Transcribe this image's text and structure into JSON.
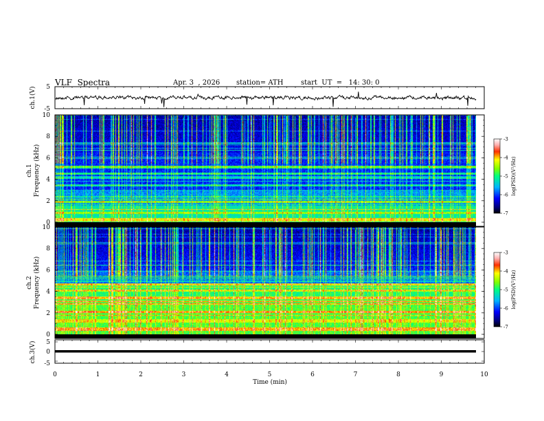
{
  "header": {
    "title": "VLF  Spectra",
    "date": "Apr. 3  , 2026",
    "station": "station= ATH",
    "start": "start  UT  =   14: 30: 0"
  },
  "chart_data": [
    {
      "type": "line",
      "panel": "ch.1 waveform",
      "ylabel": "ch.1(V)",
      "ylim": [
        -5,
        5
      ],
      "yticks": [
        "5",
        "-5"
      ],
      "xlim": [
        0,
        10
      ],
      "note": "noisy waveform centred near 0 V with sporadic negative spikes"
    },
    {
      "type": "heatmap",
      "panel": "ch.1 spectrogram",
      "ylabel": "ch.1\nFrequency  (kHz)",
      "ylim": [
        0,
        10
      ],
      "yticks": [
        "0",
        "2",
        "4",
        "6",
        "8",
        "10"
      ],
      "xlim": [
        0,
        10
      ],
      "colorbar": {
        "label": "log(PSD)(V²/Hz)",
        "range": [
          -7,
          -3
        ],
        "ticks": [
          "-3",
          "-4",
          "-5",
          "-6",
          "-7"
        ]
      }
    },
    {
      "type": "heatmap",
      "panel": "ch.2 spectrogram",
      "ylabel": "ch.2\nFrequency  (kHz)",
      "ylim": [
        0,
        10
      ],
      "yticks": [
        "0",
        "2",
        "4",
        "6",
        "8",
        "10"
      ],
      "xlim": [
        0,
        10
      ],
      "colorbar": {
        "label": "log(PSD)(V²/Hz)",
        "range": [
          -7,
          -3
        ],
        "ticks": [
          "-3",
          "-4",
          "-5",
          "-6",
          "-7"
        ]
      }
    },
    {
      "type": "line",
      "panel": "ch.3 waveform",
      "ylabel": "ch.3(V)",
      "ylim": [
        -5,
        5
      ],
      "yticks": [
        "5",
        "0",
        "-5"
      ],
      "xlim": [
        0,
        10
      ],
      "note": "flat dense trace near -1.5 V",
      "xlabel": "Time  (min)",
      "xticks": [
        "0",
        "1",
        "2",
        "3",
        "4",
        "5",
        "6",
        "7",
        "8",
        "9",
        "10"
      ]
    }
  ]
}
